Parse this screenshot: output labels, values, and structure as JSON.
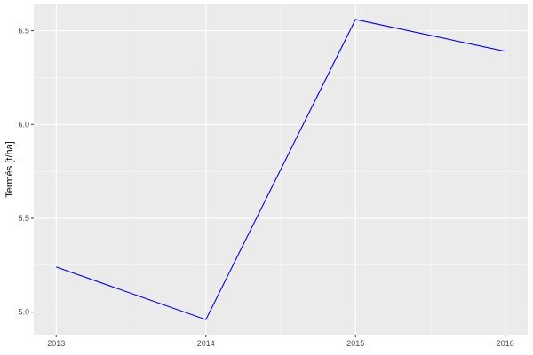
{
  "chart_data": {
    "type": "line",
    "title": "",
    "xlabel": "",
    "ylabel": "Termés [t/ha]",
    "x": [
      2013,
      2014,
      2015,
      2016
    ],
    "series": [
      {
        "values": [
          5.24,
          4.96,
          6.56,
          6.39
        ],
        "color": "#0000FF"
      }
    ],
    "xlim": [
      2012.85,
      2016.15
    ],
    "ylim": [
      4.88,
      6.64
    ],
    "xticks": [
      2013,
      2014,
      2015,
      2016
    ],
    "xtick_labels": [
      "2013",
      "2014",
      "2015",
      "2016"
    ],
    "yticks": [
      5.0,
      5.5,
      6.0,
      6.5
    ],
    "ytick_labels": [
      "5.0",
      "5.5",
      "6.0",
      "6.5"
    ],
    "grid": true,
    "panel_background": "#EBEBEB",
    "grid_color": "#FFFFFF"
  }
}
